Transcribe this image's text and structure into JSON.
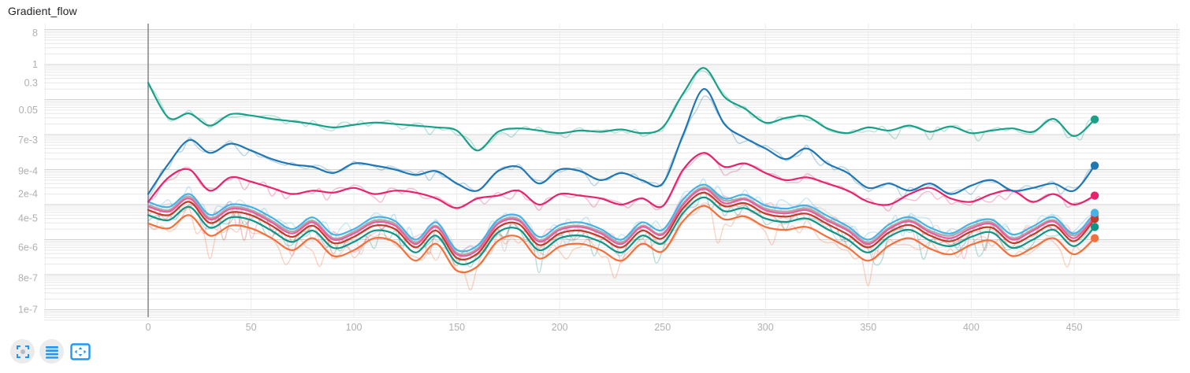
{
  "title": "Gradient_flow",
  "toolbar": {
    "accent_color": "#2196f3",
    "buttons": [
      {
        "name": "fit-data",
        "icon": "fullscreen-corners-icon"
      },
      {
        "name": "run-list",
        "icon": "horizontal-bars-icon"
      },
      {
        "name": "zoom-bounds",
        "icon": "bounded-box-icon"
      }
    ]
  },
  "chart_data": {
    "type": "line",
    "title": "Gradient_flow",
    "grid": true,
    "legend_position": "none",
    "smoothing_enabled": true,
    "original_trace_opacity": 0.3,
    "x_axis": {
      "scale": "linear",
      "tick_labels": [
        0,
        50,
        100,
        150,
        200,
        250,
        300,
        350,
        400,
        450
      ],
      "range": [
        -51,
        505
      ]
    },
    "y_axis": {
      "scale": "log",
      "tick_labels": [
        "8",
        "1",
        "0.3",
        "0.05",
        "7e-3",
        "9e-4",
        "2e-4",
        "4e-5",
        "6e-6",
        "8e-7",
        "1e-7"
      ],
      "tick_values": [
        8,
        1,
        0.3,
        0.05,
        0.007,
        0.0009,
        0.0002,
        4e-05,
        6e-06,
        8e-07,
        1e-07
      ],
      "range": [
        5e-08,
        15
      ]
    },
    "x": [
      0,
      10,
      20,
      30,
      40,
      50,
      60,
      70,
      80,
      90,
      100,
      110,
      120,
      130,
      140,
      150,
      160,
      170,
      180,
      190,
      200,
      210,
      220,
      230,
      240,
      250,
      260,
      270,
      280,
      290,
      300,
      310,
      320,
      330,
      340,
      350,
      360,
      370,
      380,
      390,
      400,
      410,
      420,
      430,
      440,
      450,
      460
    ],
    "series": [
      {
        "name": "series-green",
        "color": "#18a188",
        "end_value": 0.027,
        "has_end_dot": true,
        "values": [
          0.3,
          0.03,
          0.04,
          0.018,
          0.038,
          0.035,
          0.028,
          0.024,
          0.02,
          0.016,
          0.019,
          0.022,
          0.02,
          0.018,
          0.016,
          0.013,
          0.0035,
          0.012,
          0.015,
          0.013,
          0.011,
          0.013,
          0.012,
          0.014,
          0.011,
          0.016,
          0.15,
          0.8,
          0.12,
          0.055,
          0.022,
          0.03,
          0.033,
          0.015,
          0.011,
          0.016,
          0.013,
          0.018,
          0.012,
          0.017,
          0.011,
          0.013,
          0.015,
          0.012,
          0.028,
          0.009,
          0.027
        ]
      },
      {
        "name": "series-blue",
        "color": "#1f77b4",
        "end_value": 0.0013,
        "has_end_dot": true,
        "values": [
          0.0002,
          0.0015,
          0.007,
          0.003,
          0.0055,
          0.0035,
          0.002,
          0.0014,
          0.0012,
          0.0008,
          0.0015,
          0.0013,
          0.001,
          0.0007,
          0.0009,
          0.0004,
          0.00025,
          0.0009,
          0.0012,
          0.0004,
          0.001,
          0.0009,
          0.0005,
          0.0008,
          0.0005,
          0.0004,
          0.01,
          0.2,
          0.02,
          0.008,
          0.004,
          0.002,
          0.004,
          0.0015,
          0.0008,
          0.0003,
          0.0004,
          0.00025,
          0.0004,
          0.0002,
          0.00035,
          0.0005,
          0.00025,
          0.0003,
          0.0004,
          0.00025,
          0.0013
        ]
      },
      {
        "name": "series-magenta",
        "color": "#e6246e",
        "end_value": 0.00018,
        "has_end_dot": true,
        "values": [
          0.00012,
          0.0006,
          0.001,
          0.00025,
          0.0006,
          0.00045,
          0.0003,
          0.0002,
          0.00025,
          0.00022,
          0.0003,
          0.0002,
          0.00025,
          0.00022,
          0.00015,
          8e-05,
          0.00015,
          0.00018,
          0.00025,
          0.0001,
          0.0002,
          0.00018,
          0.00015,
          0.0001,
          0.00015,
          9e-05,
          0.001,
          0.003,
          0.0012,
          0.0015,
          0.0008,
          0.0005,
          0.0006,
          0.0004,
          0.00025,
          0.00012,
          0.0001,
          0.0002,
          0.0003,
          0.00015,
          0.00012,
          0.0002,
          0.00025,
          0.00012,
          0.0002,
          0.0001,
          0.00018
        ]
      },
      {
        "name": "series-cyan",
        "color": "#45b2e8",
        "end_value": 5.8e-05,
        "has_end_dot": true,
        "values": [
          0.00012,
          8.5e-05,
          0.0002,
          5.1e-05,
          0.0001,
          8.5e-05,
          4.3e-05,
          2e-05,
          4.3e-05,
          1.4e-05,
          2e-05,
          4.3e-05,
          3.4e-05,
          1e-05,
          3.1e-05,
          5.1e-06,
          6.8e-06,
          3.7e-05,
          4.8e-05,
          1.2e-05,
          2.6e-05,
          3.1e-05,
          2e-05,
          1e-05,
          3.1e-05,
          1.9e-05,
          0.00014,
          0.00037,
          0.00015,
          0.00019,
          9.4e-05,
          7.7e-05,
          9.4e-05,
          4.8e-05,
          2.4e-05,
          1e-05,
          2.7e-05,
          4.4e-05,
          2.2e-05,
          1.5e-05,
          2.9e-05,
          3.7e-05,
          1.4e-05,
          2.4e-05,
          4.4e-05,
          1.5e-05,
          5.8e-05
        ]
      },
      {
        "name": "series-gray",
        "color": "#aaaaaa",
        "end_value": 4.5e-05,
        "has_end_dot": false,
        "values": [
          9.8e-05,
          7e-05,
          0.00017,
          4.2e-05,
          8.4e-05,
          7e-05,
          3.5e-05,
          1.7e-05,
          3.5e-05,
          1.1e-05,
          1.7e-05,
          3.5e-05,
          2.8e-05,
          8.4e-06,
          2.5e-05,
          4.2e-06,
          5.6e-06,
          3.1e-05,
          3.9e-05,
          9.8e-06,
          2.1e-05,
          2.5e-05,
          1.7e-05,
          8.4e-06,
          2.5e-05,
          1.5e-05,
          0.00011,
          0.00031,
          0.00013,
          0.00015,
          7.7e-05,
          6.3e-05,
          7.7e-05,
          3.9e-05,
          2e-05,
          8.4e-06,
          2.2e-05,
          3.6e-05,
          1.8e-05,
          1.3e-05,
          2.4e-05,
          3.1e-05,
          1.1e-05,
          2e-05,
          3.6e-05,
          1.3e-05,
          4.5e-05
        ]
      },
      {
        "name": "series-pink",
        "color": "#ee5a9d",
        "end_value": 4.8e-05,
        "has_end_dot": true,
        "values": [
          8.8e-05,
          6.3e-05,
          0.00015,
          3.8e-05,
          7.5e-05,
          6.3e-05,
          3.1e-05,
          1.5e-05,
          3.1e-05,
          1e-05,
          1.5e-05,
          3.1e-05,
          2.5e-05,
          7.5e-06,
          2.3e-05,
          3.8e-06,
          5e-06,
          2.8e-05,
          3.5e-05,
          8.8e-06,
          1.9e-05,
          2.3e-05,
          1.5e-05,
          7.5e-06,
          2.3e-05,
          1.4e-05,
          0.0001,
          0.00028,
          0.00011,
          0.00014,
          6.9e-05,
          5.6e-05,
          6.9e-05,
          3.5e-05,
          1.8e-05,
          7.5e-06,
          2e-05,
          3.3e-05,
          1.6e-05,
          1.1e-05,
          2.1e-05,
          2.8e-05,
          1e-05,
          1.8e-05,
          3.3e-05,
          1.1e-05,
          4.8e-05
        ]
      },
      {
        "name": "series-red",
        "color": "#c23a29",
        "end_value": 3.9e-05,
        "has_end_dot": true,
        "values": [
          7e-05,
          5e-05,
          0.00012,
          3e-05,
          6e-05,
          5e-05,
          2.5e-05,
          1.2e-05,
          2.5e-05,
          8e-06,
          1.2e-05,
          2.5e-05,
          2e-05,
          6e-06,
          1.8e-05,
          3e-06,
          4e-06,
          2.2e-05,
          2.8e-05,
          7e-06,
          1.5e-05,
          1.8e-05,
          1.2e-05,
          6e-06,
          1.8e-05,
          1.1e-05,
          8e-05,
          0.00022,
          9e-05,
          0.00011,
          5.5e-05,
          4.5e-05,
          5.5e-05,
          2.8e-05,
          1.4e-05,
          6e-06,
          1.6e-05,
          2.6e-05,
          1.3e-05,
          9e-06,
          1.7e-05,
          2.2e-05,
          8e-06,
          1.4e-05,
          2.6e-05,
          9e-06,
          3.9e-05
        ]
      },
      {
        "name": "series-teal",
        "color": "#0f9586",
        "end_value": 2.3e-05,
        "has_end_dot": true,
        "values": [
          5e-05,
          3.6e-05,
          8.6e-05,
          2.2e-05,
          4.3e-05,
          3.6e-05,
          1.8e-05,
          8.6e-06,
          1.8e-05,
          5.8e-06,
          8.6e-06,
          1.8e-05,
          1.4e-05,
          4.3e-06,
          1.3e-05,
          2.2e-06,
          2.9e-06,
          1.6e-05,
          2e-05,
          5e-06,
          1.1e-05,
          1.3e-05,
          8.6e-06,
          4.3e-06,
          1.3e-05,
          7.9e-06,
          5.8e-05,
          0.00016,
          6.5e-05,
          7.9e-05,
          4e-05,
          3.2e-05,
          4e-05,
          2e-05,
          1e-05,
          4.3e-06,
          1.2e-05,
          1.9e-05,
          9.4e-06,
          6.5e-06,
          1.2e-05,
          1.6e-05,
          5.8e-06,
          1e-05,
          1.9e-05,
          6.5e-06,
          2.3e-05
        ]
      },
      {
        "name": "series-orange",
        "color": "#f4703b",
        "end_value": 1.1e-05,
        "has_end_dot": true,
        "values": [
          2.9e-05,
          2.1e-05,
          5e-05,
          1.3e-05,
          2.5e-05,
          2.1e-05,
          1.1e-05,
          5e-06,
          1.1e-05,
          3.4e-06,
          5e-06,
          1.1e-05,
          8.4e-06,
          2.5e-06,
          7.6e-06,
          1.3e-06,
          1.7e-06,
          9.2e-06,
          1.2e-05,
          2.9e-06,
          6.3e-06,
          7.6e-06,
          5e-06,
          2.5e-06,
          7.6e-06,
          4.6e-06,
          3.4e-05,
          9.2e-05,
          3.8e-05,
          4.6e-05,
          2.3e-05,
          1.9e-05,
          2.3e-05,
          1.2e-05,
          5.9e-06,
          2.5e-06,
          6.7e-06,
          1.1e-05,
          5.5e-06,
          3.8e-06,
          7.1e-06,
          9.2e-06,
          3.4e-06,
          5.9e-06,
          1.1e-05,
          3.8e-06,
          1.1e-05
        ]
      }
    ],
    "colors": {
      "axis_text": "#b0b0b0",
      "grid_minor": "#e7e7e7",
      "grid_major": "#d2d2d2",
      "zero_axis_line": "#8c8c8c"
    }
  }
}
